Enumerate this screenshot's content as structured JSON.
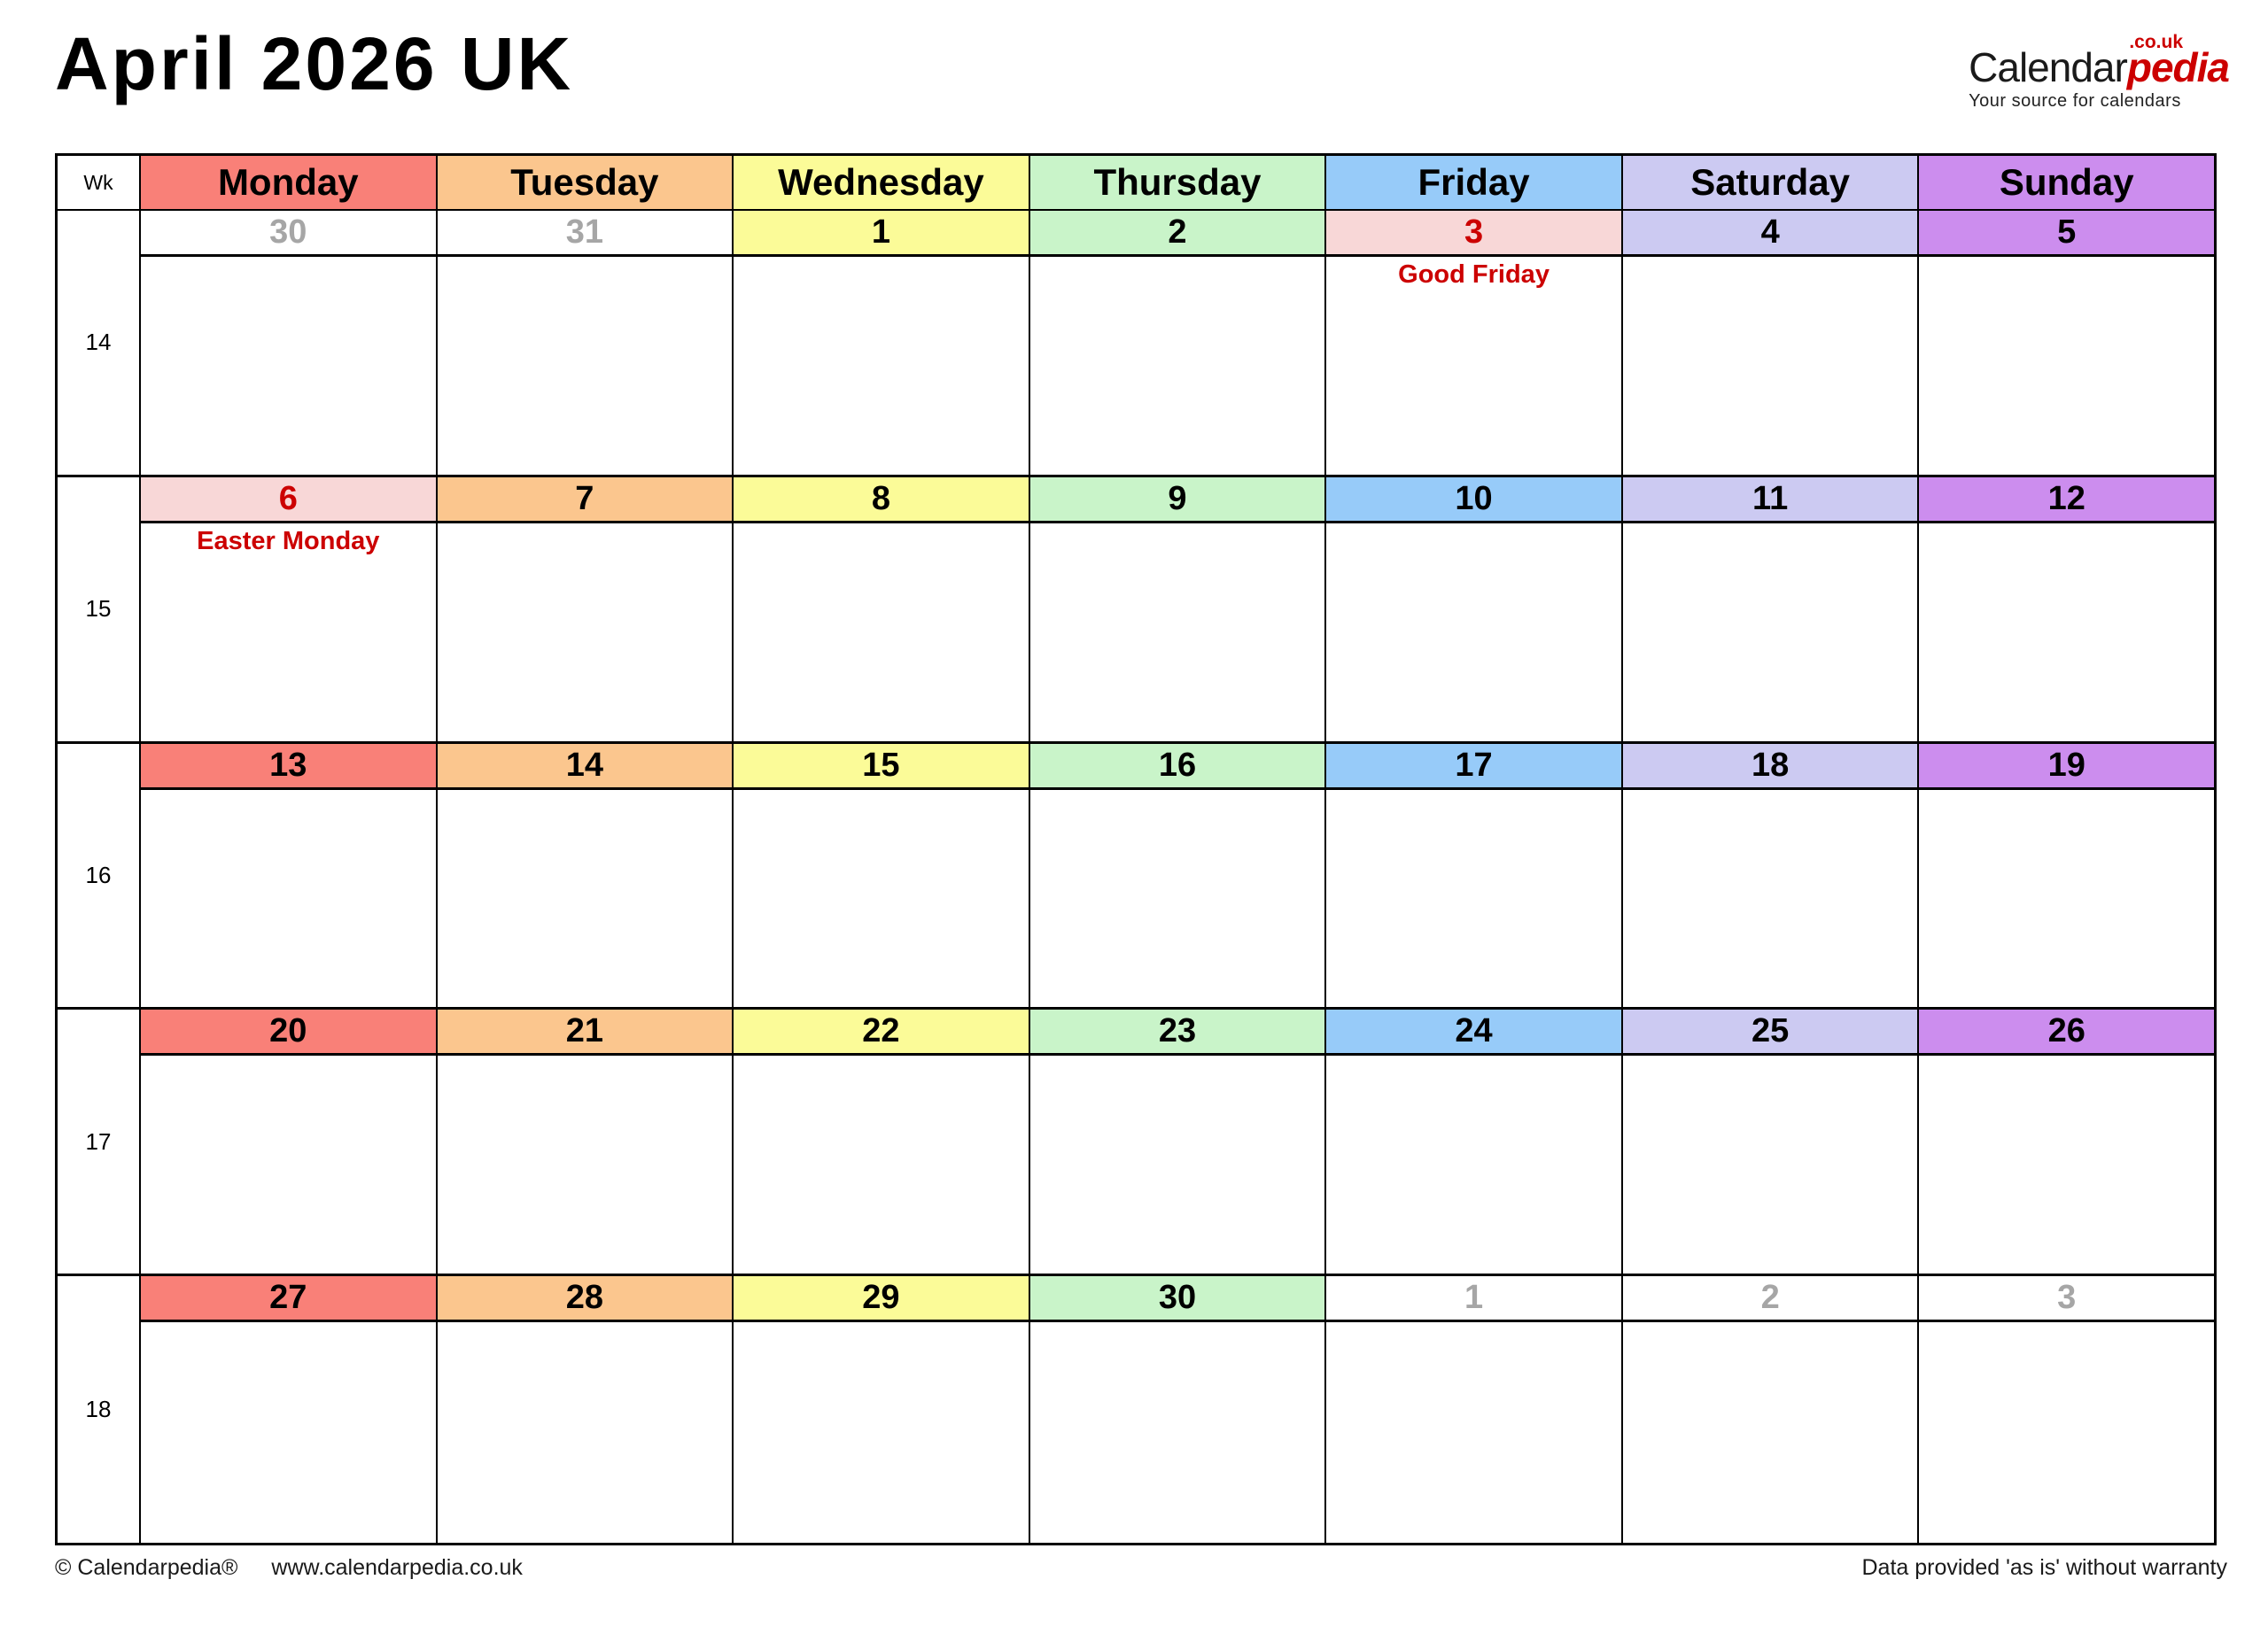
{
  "page": {
    "title": "April 2026 UK",
    "logo": {
      "part_black": "Calendar",
      "part_red": "pedia",
      "suffix": ".co.uk",
      "tagline": "Your source for calendars"
    },
    "footer": {
      "copyright": "© Calendarpedia®",
      "url": "www.calendarpedia.co.uk",
      "disclaimer": "Data provided 'as is' without warranty"
    }
  },
  "calendar": {
    "wk_header": "Wk",
    "colors": {
      "border": "#000000",
      "holiday_bg": "#F8D7D7",
      "holiday_text": "#CC0000",
      "adjacent_month_text": "#A6A6A6",
      "default_text": "#000000",
      "monday": "#F98078",
      "tuesday": "#FBC68E",
      "wednesday": "#FBFB98",
      "thursday": "#C9F4C9",
      "friday": "#97CBF9",
      "saturday": "#CCCAF2",
      "sunday": "#CC8DEE"
    },
    "days": [
      {
        "label": "Monday",
        "color": "#F98078"
      },
      {
        "label": "Tuesday",
        "color": "#FBC68E"
      },
      {
        "label": "Wednesday",
        "color": "#FBFB98"
      },
      {
        "label": "Thursday",
        "color": "#C9F4C9"
      },
      {
        "label": "Friday",
        "color": "#97CBF9"
      },
      {
        "label": "Saturday",
        "color": "#CCCAF2"
      },
      {
        "label": "Sunday",
        "color": "#CC8DEE"
      }
    ],
    "weeks": [
      {
        "wk": "14",
        "cells": [
          {
            "date": "30",
            "bg": "#FFFFFF",
            "fg": "#A6A6A6"
          },
          {
            "date": "31",
            "bg": "#FFFFFF",
            "fg": "#A6A6A6"
          },
          {
            "date": "1",
            "bg": "#FBFB98",
            "fg": "#000000"
          },
          {
            "date": "2",
            "bg": "#C9F4C9",
            "fg": "#000000"
          },
          {
            "date": "3",
            "bg": "#F8D7D7",
            "fg": "#CC0000",
            "note": "Good Friday"
          },
          {
            "date": "4",
            "bg": "#CCCAF2",
            "fg": "#000000"
          },
          {
            "date": "5",
            "bg": "#CC8DEE",
            "fg": "#000000"
          }
        ]
      },
      {
        "wk": "15",
        "cells": [
          {
            "date": "6",
            "bg": "#F8D7D7",
            "fg": "#CC0000",
            "note": "Easter Monday"
          },
          {
            "date": "7",
            "bg": "#FBC68E",
            "fg": "#000000"
          },
          {
            "date": "8",
            "bg": "#FBFB98",
            "fg": "#000000"
          },
          {
            "date": "9",
            "bg": "#C9F4C9",
            "fg": "#000000"
          },
          {
            "date": "10",
            "bg": "#97CBF9",
            "fg": "#000000"
          },
          {
            "date": "11",
            "bg": "#CCCAF2",
            "fg": "#000000"
          },
          {
            "date": "12",
            "bg": "#CC8DEE",
            "fg": "#000000"
          }
        ]
      },
      {
        "wk": "16",
        "cells": [
          {
            "date": "13",
            "bg": "#F98078",
            "fg": "#000000"
          },
          {
            "date": "14",
            "bg": "#FBC68E",
            "fg": "#000000"
          },
          {
            "date": "15",
            "bg": "#FBFB98",
            "fg": "#000000"
          },
          {
            "date": "16",
            "bg": "#C9F4C9",
            "fg": "#000000"
          },
          {
            "date": "17",
            "bg": "#97CBF9",
            "fg": "#000000"
          },
          {
            "date": "18",
            "bg": "#CCCAF2",
            "fg": "#000000"
          },
          {
            "date": "19",
            "bg": "#CC8DEE",
            "fg": "#000000"
          }
        ]
      },
      {
        "wk": "17",
        "cells": [
          {
            "date": "20",
            "bg": "#F98078",
            "fg": "#000000"
          },
          {
            "date": "21",
            "bg": "#FBC68E",
            "fg": "#000000"
          },
          {
            "date": "22",
            "bg": "#FBFB98",
            "fg": "#000000"
          },
          {
            "date": "23",
            "bg": "#C9F4C9",
            "fg": "#000000"
          },
          {
            "date": "24",
            "bg": "#97CBF9",
            "fg": "#000000"
          },
          {
            "date": "25",
            "bg": "#CCCAF2",
            "fg": "#000000"
          },
          {
            "date": "26",
            "bg": "#CC8DEE",
            "fg": "#000000"
          }
        ]
      },
      {
        "wk": "18",
        "cells": [
          {
            "date": "27",
            "bg": "#F98078",
            "fg": "#000000"
          },
          {
            "date": "28",
            "bg": "#FBC68E",
            "fg": "#000000"
          },
          {
            "date": "29",
            "bg": "#FBFB98",
            "fg": "#000000"
          },
          {
            "date": "30",
            "bg": "#C9F4C9",
            "fg": "#000000"
          },
          {
            "date": "1",
            "bg": "#FFFFFF",
            "fg": "#A6A6A6"
          },
          {
            "date": "2",
            "bg": "#FFFFFF",
            "fg": "#A6A6A6"
          },
          {
            "date": "3",
            "bg": "#FFFFFF",
            "fg": "#A6A6A6"
          }
        ]
      }
    ]
  }
}
